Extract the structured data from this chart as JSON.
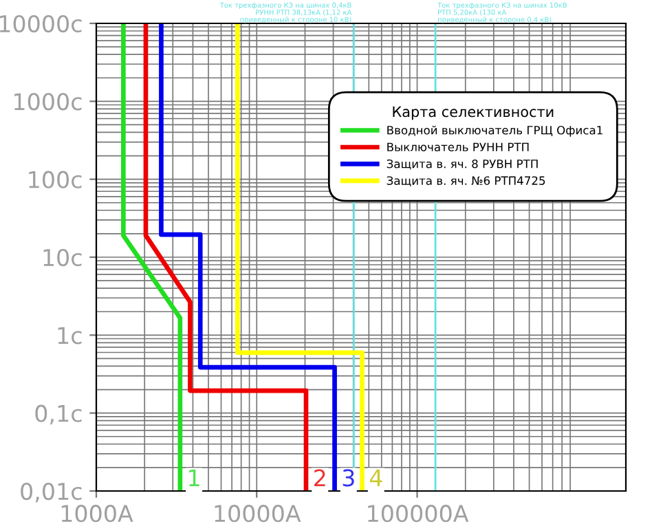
{
  "chart_data": {
    "type": "line",
    "log": "xy",
    "xlim": [
      1000,
      2000000
    ],
    "ylim": [
      0.01,
      10000
    ],
    "xticks": [
      {
        "value": 1000,
        "label": "1000А"
      },
      {
        "value": 10000,
        "label": "10000А"
      },
      {
        "value": 100000,
        "label": "100000А"
      }
    ],
    "yticks": [
      {
        "value": 0.01,
        "label": "0,01с"
      },
      {
        "value": 0.1,
        "label": "0,1с"
      },
      {
        "value": 1,
        "label": "1с"
      },
      {
        "value": 10,
        "label": "10с"
      },
      {
        "value": 100,
        "label": "100с"
      },
      {
        "value": 1000,
        "label": "1000с"
      },
      {
        "value": 10000,
        "label": "10000с"
      }
    ],
    "grid": true,
    "legend": "top right",
    "legend_title": "Карта селективности",
    "line_style": "solid",
    "marker": "none",
    "series": [
      {
        "name": "Вводной выключатель ГРЩ Офиса1",
        "color": "#22dd22",
        "x": [
          1475,
          1475,
          3330,
          3330
        ],
        "values": [
          10000,
          19,
          1.66,
          0.01
        ]
      },
      {
        "name": "Выключатель РУНН РТП",
        "color": "#ee0000",
        "x": [
          2035,
          2035,
          3845,
          3845,
          20300,
          20300
        ],
        "values": [
          10000,
          19,
          2.66,
          0.194,
          0.194,
          0.01
        ]
      },
      {
        "name": "Защита в. яч. 8 РУВН РТП",
        "color": "#0000ee",
        "x": [
          2540,
          2540,
          4450,
          4450,
          30600,
          30600
        ],
        "values": [
          10000,
          19.5,
          19.5,
          0.387,
          0.387,
          0.01
        ]
      },
      {
        "name": "Защита в. яч. №6 РТП4725",
        "color": "#ffff00",
        "x": [
          7590,
          7590,
          45400,
          45400
        ],
        "values": [
          10000,
          0.596,
          0.596,
          0.01
        ]
      }
    ],
    "ref_lines": [
      {
        "axis": "x",
        "value": 40300,
        "color": "#66e0e0",
        "label": "Ток трехфазного КЗ на шинах 0,4кВ\nРУНН РТП 38,13кА (1,12 кА\nприведенный к стороне 10 кВ)"
      },
      {
        "axis": "x",
        "value": 130000,
        "color": "#66e0e0",
        "label": "Ток трехфазного КЗ на шинах 10кВ\nРТП 5,20кА (130 кА\nприведенный к стороне 0,4 кВ)"
      }
    ],
    "annotations": [
      {
        "text": "1",
        "x": 3330,
        "y": 0.01
      },
      {
        "text": "2",
        "x": 20300,
        "y": 0.01
      },
      {
        "text": "3",
        "x": 30600,
        "y": 0.01
      },
      {
        "text": "4",
        "x": 45400,
        "y": 0.01
      }
    ]
  }
}
